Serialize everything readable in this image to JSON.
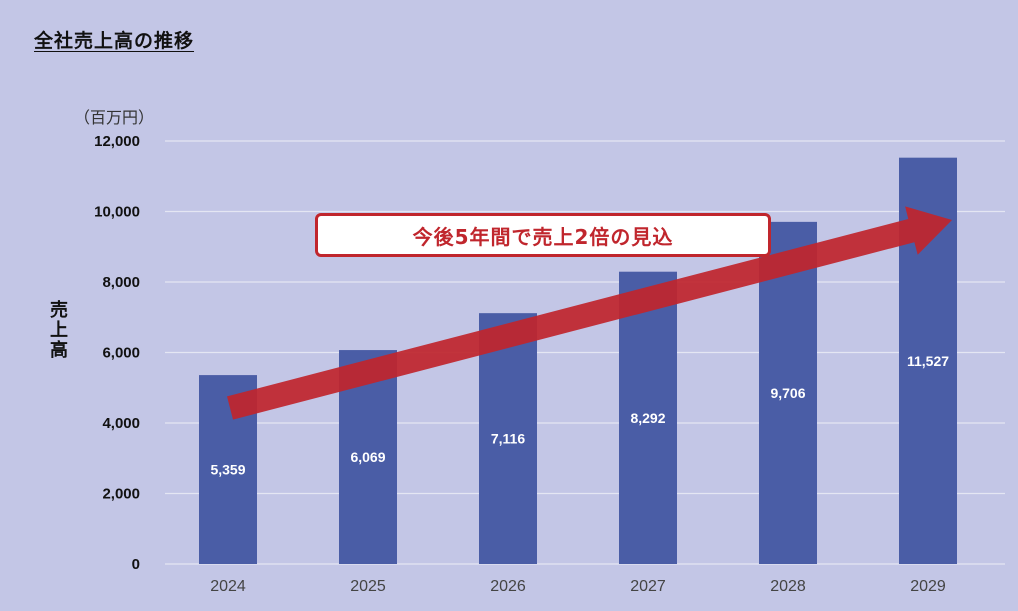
{
  "page": {
    "title": "全社売上高の推移",
    "unit": "（百万円）",
    "callout": "今後5年間で売上2倍の見込"
  },
  "chart_data": {
    "type": "bar",
    "title": "",
    "ylabel": "売上高",
    "xlabel": "",
    "categories": [
      "2024",
      "2025",
      "2026",
      "2027",
      "2028",
      "2029"
    ],
    "series": [
      {
        "values": [
          5359,
          6069,
          7116,
          8292,
          9706,
          11527
        ]
      }
    ],
    "data_labels": [
      "5,359",
      "6,069",
      "7,116",
      "8,292",
      "9,706",
      "11,527"
    ],
    "ylim": [
      0,
      12000
    ],
    "yticks": [
      0,
      2000,
      4000,
      6000,
      8000,
      10000,
      12000
    ],
    "ytick_labels": [
      "0",
      "2,000",
      "4,000",
      "6,000",
      "8,000",
      "10,000",
      "12,000"
    ],
    "grid": true,
    "colors": {
      "bar": "#4a5da6",
      "arrow": "#c0262d",
      "grid": "#e4e6f3"
    }
  }
}
